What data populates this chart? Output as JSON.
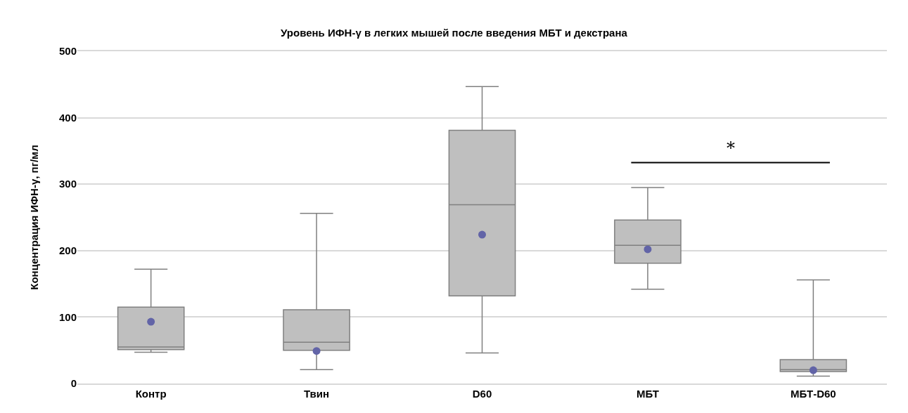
{
  "chart_data": {
    "type": "box",
    "title": "Уровень ИФН-γ в легких мышей после введения МБТ и декстрана",
    "ylabel": "Концентрация ИФН-γ, пг/мл",
    "categories": [
      "Контр",
      "Твин",
      "D60",
      "МБТ",
      "МБТ-D60"
    ],
    "series": [
      {
        "color": "#bfbfbf",
        "boxes": [
          {
            "low": 47,
            "q1": 51,
            "median": 55,
            "q3": 115,
            "high": 172
          },
          {
            "low": 21,
            "q1": 50,
            "median": 62,
            "q3": 111,
            "high": 256
          },
          {
            "low": 46,
            "q1": 132,
            "median": 269,
            "q3": 381,
            "high": 447
          },
          {
            "low": 142,
            "q1": 181,
            "median": 208,
            "q3": 246,
            "high": 295
          },
          {
            "low": 11,
            "q1": 18,
            "median": 21,
            "q3": 36,
            "high": 156
          }
        ]
      },
      {
        "type": "scatter",
        "color": "#6264a7",
        "x": [
          "Контр",
          "Твин",
          "D60",
          "МБТ",
          "МБТ-D60"
        ],
        "values": [
          93,
          49,
          224,
          202,
          20
        ],
        "marker": "circle"
      }
    ],
    "annotations": [
      "*"
    ],
    "ylim": [
      0,
      500
    ],
    "yticks": [
      0,
      100,
      200,
      300,
      400,
      500
    ],
    "grid": "y"
  }
}
